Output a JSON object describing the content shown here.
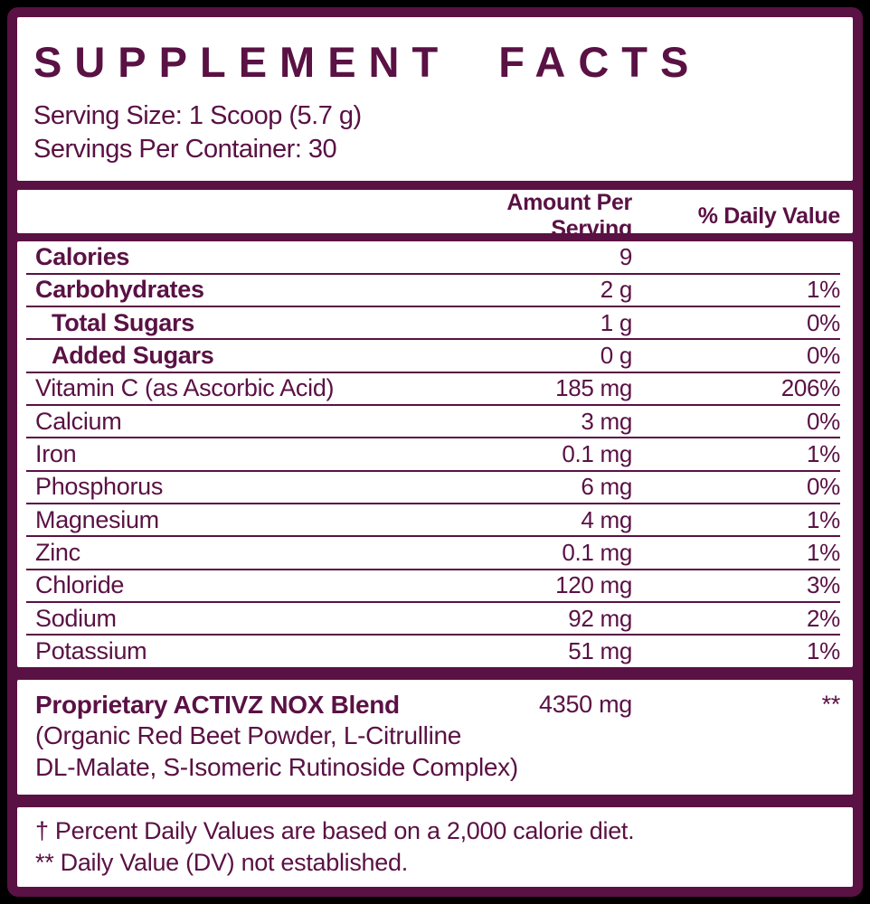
{
  "colors": {
    "brand": "#5a1144",
    "panel_background": "#ffffff",
    "outer_background": "#000000"
  },
  "title": "SUPPLEMENT FACTS",
  "serving_info": {
    "serving_size": "Serving Size: 1 Scoop (5.7 g)",
    "servings_per_container": "Servings Per Container: 30"
  },
  "table": {
    "headers": {
      "amount": "Amount Per Serving",
      "daily_value": "% Daily Value"
    },
    "rows": [
      {
        "label": "Calories",
        "amount": "9",
        "dv": "",
        "bold": true,
        "indent": false
      },
      {
        "label": "Carbohydrates",
        "amount": "2 g",
        "dv": "1%",
        "bold": true,
        "indent": false
      },
      {
        "label": "Total Sugars",
        "amount": "1 g",
        "dv": "0%",
        "bold": true,
        "indent": true
      },
      {
        "label": "Added Sugars",
        "amount": "0 g",
        "dv": "0%",
        "bold": true,
        "indent": true
      },
      {
        "label": "Vitamin C (as Ascorbic Acid)",
        "amount": "185 mg",
        "dv": "206%",
        "bold": false,
        "indent": false
      },
      {
        "label": "Calcium",
        "amount": "3 mg",
        "dv": "0%",
        "bold": false,
        "indent": false
      },
      {
        "label": "Iron",
        "amount": "0.1 mg",
        "dv": "1%",
        "bold": false,
        "indent": false
      },
      {
        "label": "Phosphorus",
        "amount": "6 mg",
        "dv": "0%",
        "bold": false,
        "indent": false
      },
      {
        "label": "Magnesium",
        "amount": "4 mg",
        "dv": "1%",
        "bold": false,
        "indent": false
      },
      {
        "label": "Zinc",
        "amount": "0.1 mg",
        "dv": "1%",
        "bold": false,
        "indent": false
      },
      {
        "label": "Chloride",
        "amount": "120 mg",
        "dv": "3%",
        "bold": false,
        "indent": false
      },
      {
        "label": "Sodium",
        "amount": "92 mg",
        "dv": "2%",
        "bold": false,
        "indent": false
      },
      {
        "label": "Potassium",
        "amount": "51 mg",
        "dv": "1%",
        "bold": false,
        "indent": false
      }
    ]
  },
  "blend": {
    "name": "Proprietary ACTIVZ NOX Blend",
    "amount": "4350 mg",
    "dv": "**",
    "ingredients_line1": "(Organic Red Beet Powder, L-Citrulline",
    "ingredients_line2": "DL-Malate, S-Isomeric Rutinoside Complex)"
  },
  "footnotes": [
    "† Percent Daily Values are based on a 2,000 calorie diet.",
    "** Daily Value (DV) not established."
  ]
}
